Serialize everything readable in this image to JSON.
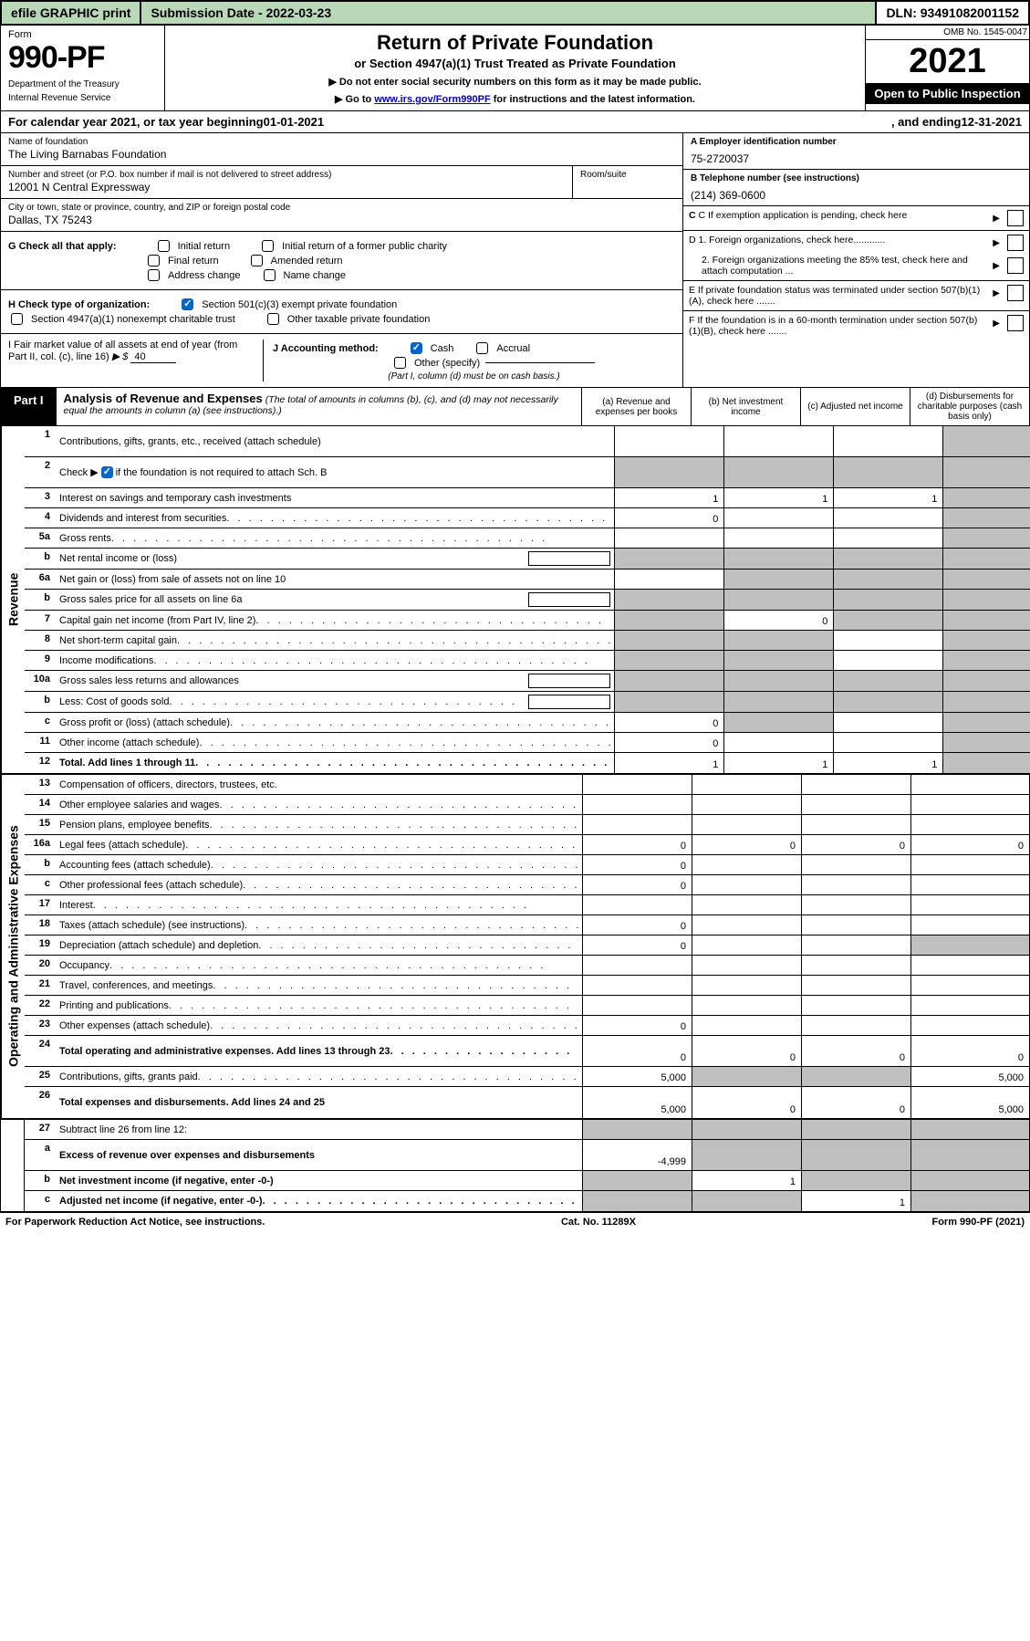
{
  "topbar": {
    "efile": "efile GRAPHIC print",
    "submission_label": "Submission Date - 2022-03-23",
    "dln": "DLN: 93491082001152"
  },
  "header": {
    "form_word": "Form",
    "form_number": "990-PF",
    "dept1": "Department of the Treasury",
    "dept2": "Internal Revenue Service",
    "title": "Return of Private Foundation",
    "subtitle": "or Section 4947(a)(1) Trust Treated as Private Foundation",
    "instr1": "▶ Do not enter social security numbers on this form as it may be made public.",
    "instr2_pre": "▶ Go to ",
    "instr2_link": "www.irs.gov/Form990PF",
    "instr2_post": " for instructions and the latest information.",
    "omb": "OMB No. 1545-0047",
    "year": "2021",
    "open_public": "Open to Public Inspection"
  },
  "calendar": {
    "text_pre": "For calendar year 2021, or tax year beginning ",
    "begin": "01-01-2021",
    "text_mid": " , and ending ",
    "end": "12-31-2021"
  },
  "foundation": {
    "name_label": "Name of foundation",
    "name": "The Living Barnabas Foundation",
    "addr_label": "Number and street (or P.O. box number if mail is not delivered to street address)",
    "addr": "12001 N Central Expressway",
    "room_label": "Room/suite",
    "room": "",
    "city_label": "City or town, state or province, country, and ZIP or foreign postal code",
    "city": "Dallas, TX  75243"
  },
  "side": {
    "ein_label": "A Employer identification number",
    "ein": "75-2720037",
    "phone_label": "B Telephone number (see instructions)",
    "phone": "(214) 369-0600",
    "c_label": "C If exemption application is pending, check here",
    "d1": "D 1. Foreign organizations, check here............",
    "d2": "2. Foreign organizations meeting the 85% test, check here and attach computation ...",
    "e": "E If private foundation status was terminated under section 507(b)(1)(A), check here .......",
    "f": "F If the foundation is in a 60-month termination under section 507(b)(1)(B), check here .......",
    "g_label": "G Check all that apply:",
    "g_initial": "Initial return",
    "g_initial_former": "Initial return of a former public charity",
    "g_final": "Final return",
    "g_amended": "Amended return",
    "g_address": "Address change",
    "g_name": "Name change",
    "h_label": "H Check type of organization:",
    "h_501c3": "Section 501(c)(3) exempt private foundation",
    "h_4947": "Section 4947(a)(1) nonexempt charitable trust",
    "h_other": "Other taxable private foundation",
    "i_label": "I Fair market value of all assets at end of year (from Part II, col. (c), line 16)",
    "i_arrow": "▶ $",
    "i_value": "40",
    "j_label": "J Accounting method:",
    "j_cash": "Cash",
    "j_accrual": "Accrual",
    "j_other": "Other (specify)",
    "j_note": "(Part I, column (d) must be on cash basis.)"
  },
  "part1": {
    "badge": "Part I",
    "title": "Analysis of Revenue and Expenses",
    "sub": "(The total of amounts in columns (b), (c), and (d) may not necessarily equal the amounts in column (a) (see instructions).)",
    "col_a": "(a) Revenue and expenses per books",
    "col_b": "(b) Net investment income",
    "col_c": "(c) Adjusted net income",
    "col_d": "(d) Disbursements for charitable purposes (cash basis only)"
  },
  "vert": {
    "revenue": "Revenue",
    "expenses": "Operating and Administrative Expenses"
  },
  "rows": {
    "r1": {
      "n": "1",
      "label": "Contributions, gifts, grants, etc., received (attach schedule)"
    },
    "r2": {
      "n": "2",
      "label_pre": "Check ▶ ",
      "label_post": " if the foundation is not required to attach Sch. B"
    },
    "r3": {
      "n": "3",
      "label": "Interest on savings and temporary cash investments",
      "a": "1",
      "b": "1",
      "c": "1"
    },
    "r4": {
      "n": "4",
      "label": "Dividends and interest from securities",
      "a": "0"
    },
    "r5a": {
      "n": "5a",
      "label": "Gross rents"
    },
    "r5b": {
      "n": "b",
      "label": "Net rental income or (loss)"
    },
    "r6a": {
      "n": "6a",
      "label": "Net gain or (loss) from sale of assets not on line 10"
    },
    "r6b": {
      "n": "b",
      "label": "Gross sales price for all assets on line 6a"
    },
    "r7": {
      "n": "7",
      "label": "Capital gain net income (from Part IV, line 2)",
      "b": "0"
    },
    "r8": {
      "n": "8",
      "label": "Net short-term capital gain"
    },
    "r9": {
      "n": "9",
      "label": "Income modifications"
    },
    "r10a": {
      "n": "10a",
      "label": "Gross sales less returns and allowances"
    },
    "r10b": {
      "n": "b",
      "label": "Less: Cost of goods sold"
    },
    "r10c": {
      "n": "c",
      "label": "Gross profit or (loss) (attach schedule)",
      "a": "0"
    },
    "r11": {
      "n": "11",
      "label": "Other income (attach schedule)",
      "a": "0"
    },
    "r12": {
      "n": "12",
      "label": "Total. Add lines 1 through 11",
      "a": "1",
      "b": "1",
      "c": "1"
    },
    "r13": {
      "n": "13",
      "label": "Compensation of officers, directors, trustees, etc."
    },
    "r14": {
      "n": "14",
      "label": "Other employee salaries and wages"
    },
    "r15": {
      "n": "15",
      "label": "Pension plans, employee benefits"
    },
    "r16a": {
      "n": "16a",
      "label": "Legal fees (attach schedule)",
      "a": "0",
      "b": "0",
      "c": "0",
      "d": "0"
    },
    "r16b": {
      "n": "b",
      "label": "Accounting fees (attach schedule)",
      "a": "0"
    },
    "r16c": {
      "n": "c",
      "label": "Other professional fees (attach schedule)",
      "a": "0"
    },
    "r17": {
      "n": "17",
      "label": "Interest"
    },
    "r18": {
      "n": "18",
      "label": "Taxes (attach schedule) (see instructions)",
      "a": "0"
    },
    "r19": {
      "n": "19",
      "label": "Depreciation (attach schedule) and depletion",
      "a": "0"
    },
    "r20": {
      "n": "20",
      "label": "Occupancy"
    },
    "r21": {
      "n": "21",
      "label": "Travel, conferences, and meetings"
    },
    "r22": {
      "n": "22",
      "label": "Printing and publications"
    },
    "r23": {
      "n": "23",
      "label": "Other expenses (attach schedule)",
      "a": "0"
    },
    "r24": {
      "n": "24",
      "label": "Total operating and administrative expenses. Add lines 13 through 23",
      "a": "0",
      "b": "0",
      "c": "0",
      "d": "0"
    },
    "r25": {
      "n": "25",
      "label": "Contributions, gifts, grants paid",
      "a": "5,000",
      "d": "5,000"
    },
    "r26": {
      "n": "26",
      "label": "Total expenses and disbursements. Add lines 24 and 25",
      "a": "5,000",
      "b": "0",
      "c": "0",
      "d": "5,000"
    },
    "r27": {
      "n": "27",
      "label": "Subtract line 26 from line 12:"
    },
    "r27a": {
      "n": "a",
      "label": "Excess of revenue over expenses and disbursements",
      "a": "-4,999"
    },
    "r27b": {
      "n": "b",
      "label": "Net investment income (if negative, enter -0-)",
      "b": "1"
    },
    "r27c": {
      "n": "c",
      "label": "Adjusted net income (if negative, enter -0-)",
      "c": "1"
    }
  },
  "footer": {
    "left": "For Paperwork Reduction Act Notice, see instructions.",
    "mid": "Cat. No. 11289X",
    "right": "Form 990-PF (2021)"
  },
  "colors": {
    "shaded": "#c0c0c0",
    "green_bar": "#b8d8b8",
    "link": "#0000cc",
    "check_blue": "#0066cc"
  }
}
